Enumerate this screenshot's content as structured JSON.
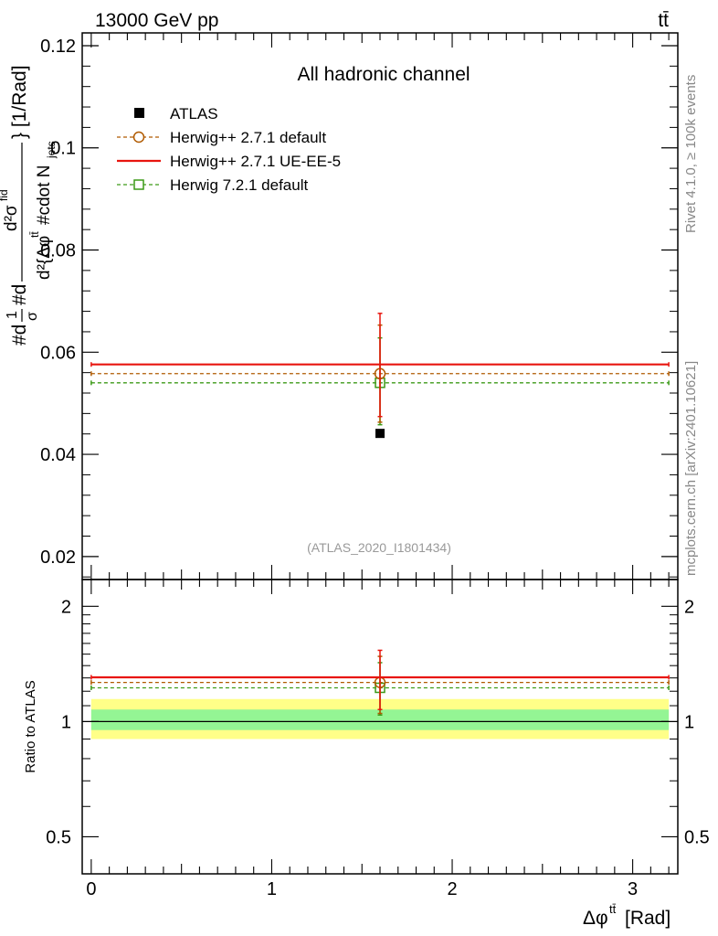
{
  "header": {
    "energy_label": "13000 GeV pp",
    "process_label": "tt̄"
  },
  "side": {
    "rivet_label": "Rivet 4.1.0, ≥ 100k events",
    "source_label": "mcplots.cern.ch [arXiv:2401.10621]"
  },
  "colors": {
    "atlas": "#000000",
    "default": "#b05a00",
    "ueee5": "#e8150f",
    "h721": "#3c9a17",
    "band_outer": "#ffff88",
    "band_inner": "#94f594"
  },
  "chart_data": [
    {
      "type": "scatter",
      "title": "All hadronic channel",
      "analysis": "(ATLAS_2020_I1801434)",
      "xlabel": "Δφ^{t̄t} [Rad]",
      "ylabel": "#d¹/σ#d d²σ^{fid}/d²{Δφ^{tt̄} #cdot N_{jets}} [1/Rad]",
      "ylabel_main": "#d",
      "ylabel_frac_num": "1",
      "ylabel_frac_den": "σ",
      "ylabel_mid": "#d",
      "ylabel_inner_num": "d²σ",
      "ylabel_inner_num_sup": "fid",
      "ylabel_inner_den": "d²{Δφ",
      "ylabel_inner_den_sup": "tt̄",
      "ylabel_inner_den_rest": " #cdot N",
      "ylabel_inner_den_sub": "jets",
      "ylabel_tail": "} [1/Rad]",
      "xlim": [
        -0.05,
        3.25
      ],
      "ylim": [
        0.0155,
        0.1225
      ],
      "yticks": [
        0.02,
        0.04,
        0.06,
        0.08,
        0.1,
        0.12
      ],
      "ytick_labels": [
        "0.02",
        "0.04",
        "0.06",
        "0.08",
        "0.1",
        "0.12"
      ],
      "legend": [
        {
          "name": "ATLAS",
          "key": "atlas",
          "marker": "square-filled",
          "line": "none"
        },
        {
          "name": "Herwig++ 2.7.1 default",
          "key": "default",
          "marker": "circle-open",
          "line": "dashed"
        },
        {
          "name": "Herwig++ 2.7.1 UE-EE-5",
          "key": "ueee5",
          "marker": "none",
          "line": "solid"
        },
        {
          "name": "Herwig 7.2.1 default",
          "key": "h721",
          "marker": "square-open",
          "line": "dashed"
        }
      ],
      "series": [
        {
          "name": "ATLAS",
          "key": "atlas",
          "x": 1.6,
          "y": 0.0441,
          "yerr": [
            0.0,
            0.0
          ]
        },
        {
          "name": "Herwig++ 2.7.1 default",
          "key": "default",
          "x": 1.6,
          "xrange": [
            0,
            3.2
          ],
          "y": 0.0558,
          "yerr": [
            0.0095,
            0.0095
          ]
        },
        {
          "name": "Herwig++ 2.7.1 UE-EE-5",
          "key": "ueee5",
          "x": 1.6,
          "xrange": [
            0,
            3.2
          ],
          "y": 0.0576,
          "yerr": [
            0.0102,
            0.01
          ]
        },
        {
          "name": "Herwig 7.2.1 default",
          "key": "h721",
          "x": 1.6,
          "xrange": [
            0,
            3.2
          ],
          "y": 0.054,
          "yerr": [
            0.0082,
            0.0088
          ]
        }
      ]
    },
    {
      "type": "scatter",
      "title": "",
      "ylabel": "Ratio to ATLAS",
      "xlabel": "Δφ^{t̄t} [Rad]",
      "xlim": [
        -0.05,
        3.25
      ],
      "ylim": [
        0.4,
        2.35
      ],
      "ylog": true,
      "yticks": [
        0.5,
        1,
        2
      ],
      "ytick_labels": [
        "0.5",
        "1",
        "2"
      ],
      "xticks": [
        0,
        1,
        2,
        3
      ],
      "xtick_labels": [
        "0",
        "1",
        "2",
        "3"
      ],
      "bands": [
        {
          "name": "total uncertainty",
          "key": "band_outer",
          "x": [
            0,
            3.2
          ],
          "y": [
            0.9,
            1.145
          ]
        },
        {
          "name": "stat uncertainty",
          "key": "band_inner",
          "x": [
            0,
            3.2
          ],
          "y": [
            0.95,
            1.075
          ]
        }
      ],
      "series": [
        {
          "name": "Herwig++ 2.7.1 default",
          "key": "default",
          "x": 1.6,
          "xrange": [
            0,
            3.2
          ],
          "y": 1.265,
          "yerr": [
            0.215,
            0.215
          ]
        },
        {
          "name": "Herwig++ 2.7.1 UE-EE-5",
          "key": "ueee5",
          "x": 1.6,
          "xrange": [
            0,
            3.2
          ],
          "y": 1.305,
          "yerr": [
            0.23,
            0.23
          ]
        },
        {
          "name": "Herwig 7.2.1 default",
          "key": "h721",
          "x": 1.6,
          "xrange": [
            0,
            3.2
          ],
          "y": 1.225,
          "yerr": [
            0.185,
            0.2
          ]
        }
      ]
    }
  ]
}
